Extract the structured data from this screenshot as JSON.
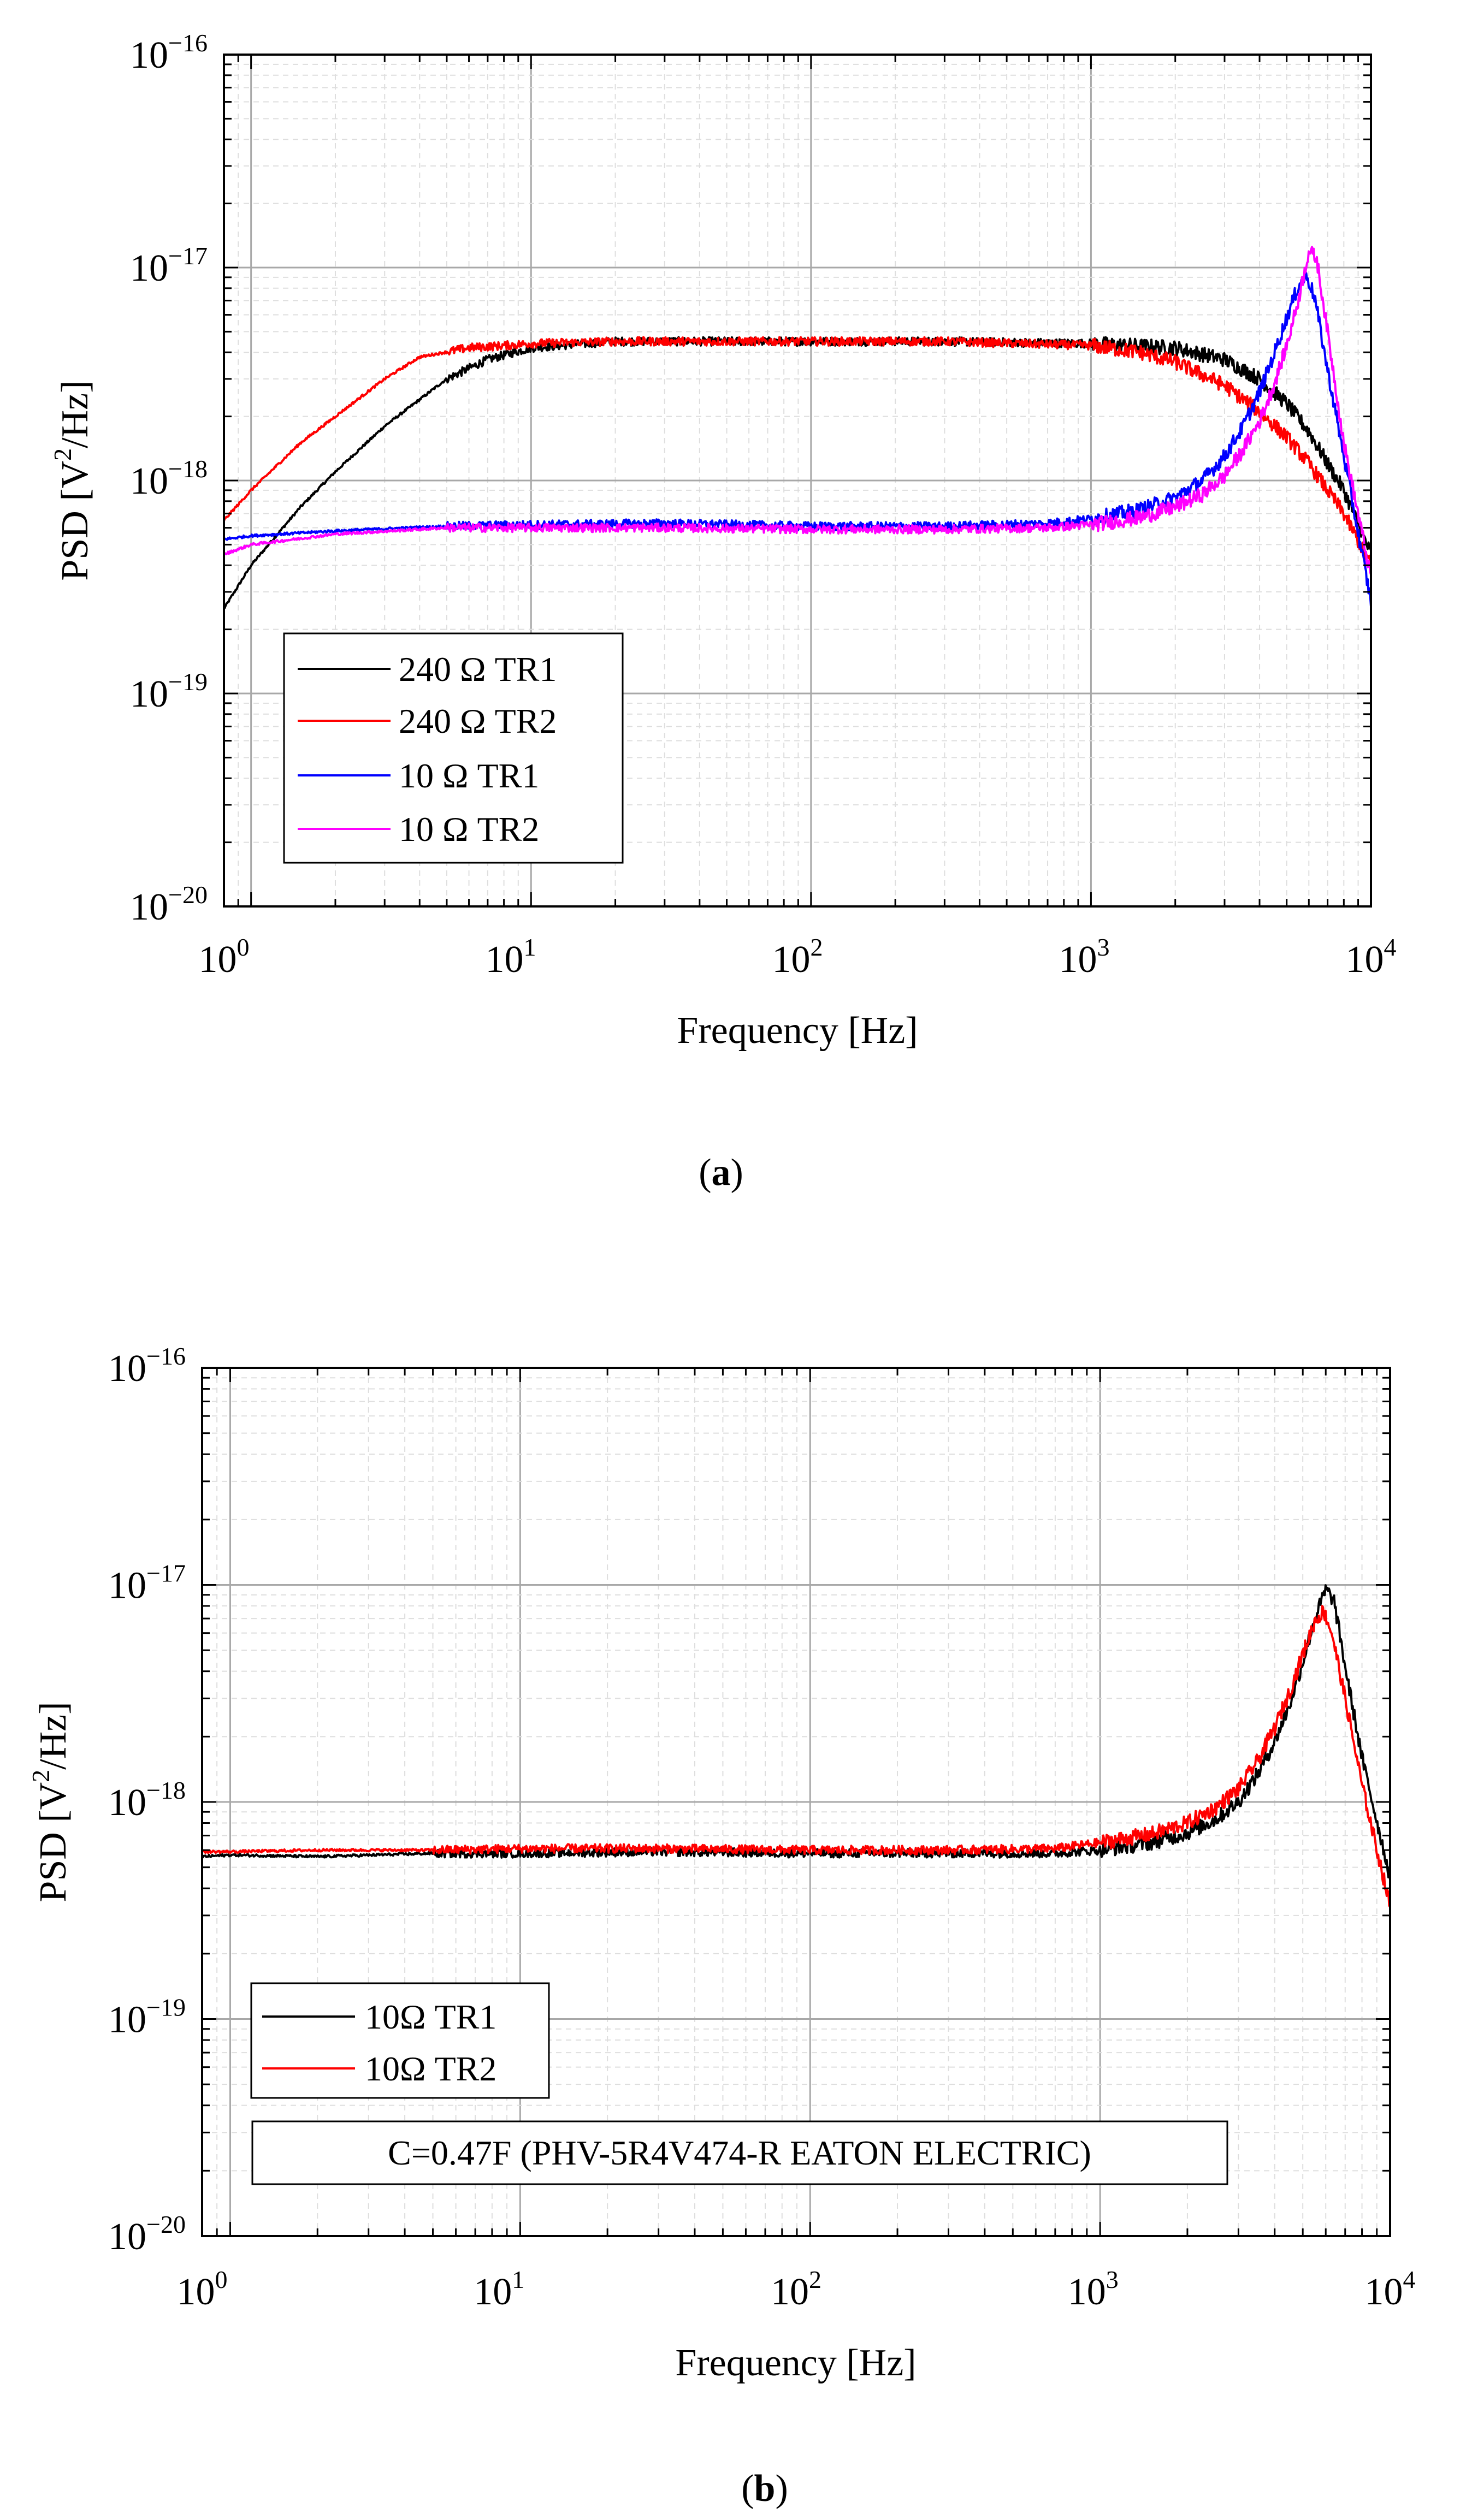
{
  "chart_data": [
    {
      "type": "line",
      "panel": "a",
      "caption": {
        "open": "(",
        "letter": "a",
        "close": ")"
      },
      "xlabel": "Frequency [Hz]",
      "ylabel": {
        "pre": "PSD [V",
        "sup": "2",
        "post": "/Hz]"
      },
      "xscale": "log",
      "yscale": "log",
      "xlim": [
        0.8,
        10000
      ],
      "ylim": [
        1e-20,
        1e-16
      ],
      "grid": true,
      "legend_position": "bottom-left",
      "x_ticks": [
        {
          "base": "10",
          "exp": "0"
        },
        {
          "base": "10",
          "exp": "1"
        },
        {
          "base": "10",
          "exp": "2"
        },
        {
          "base": "10",
          "exp": "3"
        },
        {
          "base": "10",
          "exp": "4"
        }
      ],
      "y_ticks": [
        {
          "base": "10",
          "exp": "−20"
        },
        {
          "base": "10",
          "exp": "−19"
        },
        {
          "base": "10",
          "exp": "−18"
        },
        {
          "base": "10",
          "exp": "−17"
        },
        {
          "base": "10",
          "exp": "−16"
        }
      ],
      "series": [
        {
          "name": "240 Ω TR1",
          "color": "#000000",
          "x": [
            0.8,
            1,
            1.5,
            2,
            3,
            4,
            5,
            7,
            10,
            20,
            50,
            100,
            300,
            1000,
            2000,
            3000,
            4000,
            5000,
            6000,
            7000,
            8000,
            10000
          ],
          "y": [
            2.5e-19,
            4e-19,
            7.5e-19,
            1.1e-18,
            1.8e-18,
            2.4e-18,
            3e-18,
            3.7e-18,
            4.2e-18,
            4.5e-18,
            4.5e-18,
            4.5e-18,
            4.5e-18,
            4.4e-18,
            4.2e-18,
            3.7e-18,
            3e-18,
            2.3e-18,
            1.7e-18,
            1.2e-18,
            9e-19,
            4.5e-19
          ]
        },
        {
          "name": "240 Ω TR2",
          "color": "#ff0000",
          "x": [
            0.8,
            1,
            1.5,
            2,
            3,
            4,
            6,
            8,
            10,
            20,
            50,
            100,
            300,
            1000,
            1500,
            2000,
            3000,
            4000,
            5000,
            6000,
            7000,
            8000,
            10000
          ],
          "y": [
            6.5e-19,
            9e-19,
            1.5e-18,
            2e-18,
            3e-18,
            3.8e-18,
            4.2e-18,
            4.3e-18,
            4.4e-18,
            4.5e-18,
            4.5e-18,
            4.5e-18,
            4.5e-18,
            4.3e-18,
            4e-18,
            3.6e-18,
            2.8e-18,
            2.1e-18,
            1.6e-18,
            1.2e-18,
            9e-19,
            7e-19,
            4e-19
          ]
        },
        {
          "name": "10 Ω TR1",
          "color": "#0000ff",
          "x": [
            0.8,
            1,
            2,
            5,
            10,
            30,
            100,
            300,
            700,
            1000,
            1500,
            2000,
            2500,
            3000,
            3500,
            4000,
            4500,
            5000,
            5500,
            5900,
            6300,
            7000,
            8000,
            10000
          ],
          "y": [
            5.3e-19,
            5.5e-19,
            5.8e-19,
            6.1e-19,
            6.2e-19,
            6.3e-19,
            6.1e-19,
            6.1e-19,
            6.3e-19,
            6.6e-19,
            7.3e-19,
            8.3e-19,
            1e-18,
            1.3e-18,
            1.8e-18,
            2.6e-18,
            3.9e-18,
            5.8e-18,
            8.2e-18,
            9.2e-18,
            7.2e-18,
            3.3e-18,
            1.3e-18,
            2.7e-19
          ]
        },
        {
          "name": "10 Ω TR2",
          "color": "#ff00ff",
          "x": [
            0.8,
            1,
            2,
            5,
            10,
            30,
            100,
            300,
            700,
            1000,
            1500,
            2000,
            2500,
            3000,
            3500,
            4000,
            4500,
            5000,
            5500,
            6000,
            6400,
            7000,
            8000,
            10000
          ],
          "y": [
            4.5e-19,
            5e-19,
            5.6e-19,
            6e-19,
            6e-19,
            6e-19,
            5.9e-19,
            5.9e-19,
            6e-19,
            6.2e-19,
            6.7e-19,
            7.5e-19,
            8.6e-19,
            1.05e-18,
            1.4e-18,
            1.9e-18,
            2.8e-18,
            4.3e-18,
            7e-18,
            1.2e-17,
            1.1e-17,
            5e-18,
            1.5e-18,
            3.5e-19
          ]
        }
      ]
    },
    {
      "type": "line",
      "panel": "b",
      "caption": {
        "open": "(",
        "letter": "b",
        "close": ")"
      },
      "xlabel": "Frequency [Hz]",
      "ylabel": {
        "pre": "PSD [V",
        "sup": "2",
        "post": "/Hz]"
      },
      "xscale": "log",
      "yscale": "log",
      "xlim": [
        0.8,
        10000
      ],
      "ylim": [
        1e-20,
        1e-16
      ],
      "grid": true,
      "legend_position": "bottom-left",
      "annotation": "C=0.47F (PHV-5R4V474-R EATON ELECTRIC)",
      "x_ticks": [
        {
          "base": "10",
          "exp": "0"
        },
        {
          "base": "10",
          "exp": "1"
        },
        {
          "base": "10",
          "exp": "2"
        },
        {
          "base": "10",
          "exp": "3"
        },
        {
          "base": "10",
          "exp": "4"
        }
      ],
      "y_ticks": [
        {
          "base": "10",
          "exp": "−20"
        },
        {
          "base": "10",
          "exp": "−19"
        },
        {
          "base": "10",
          "exp": "−18"
        },
        {
          "base": "10",
          "exp": "−17"
        },
        {
          "base": "10",
          "exp": "−16"
        }
      ],
      "series": [
        {
          "name": "10Ω TR1",
          "color": "#000000",
          "x": [
            0.8,
            1,
            2,
            5,
            10,
            30,
            100,
            300,
            700,
            1000,
            1500,
            2000,
            2500,
            3000,
            3500,
            4000,
            4500,
            5000,
            5500,
            6000,
            6400,
            7000,
            8000,
            10000
          ],
          "y": [
            5.6e-19,
            5.7e-19,
            5.6e-19,
            5.8e-19,
            5.8e-19,
            5.9e-19,
            5.8e-19,
            5.8e-19,
            5.8e-19,
            6e-19,
            6.5e-19,
            7.2e-19,
            8.3e-19,
            1e-18,
            1.35e-18,
            1.9e-18,
            2.8e-18,
            4.4e-18,
            7e-18,
            9.5e-18,
            8.5e-18,
            4.2e-18,
            1.6e-18,
            4.5e-19
          ]
        },
        {
          "name": "10Ω TR2",
          "color": "#ff0000",
          "x": [
            0.8,
            1,
            2,
            5,
            10,
            30,
            100,
            300,
            700,
            1000,
            1500,
            2000,
            2500,
            3000,
            3500,
            4000,
            4500,
            5000,
            5500,
            5900,
            6300,
            7000,
            8000,
            10000
          ],
          "y": [
            5.9e-19,
            5.9e-19,
            6e-19,
            6e-19,
            6.1e-19,
            6.1e-19,
            6e-19,
            6e-19,
            6.1e-19,
            6.5e-19,
            7.1e-19,
            8e-19,
            9.4e-19,
            1.15e-18,
            1.55e-18,
            2.2e-18,
            3.2e-18,
            4.8e-18,
            6.8e-18,
            7.6e-18,
            6e-18,
            3e-18,
            1.2e-18,
            3.3e-19
          ]
        }
      ]
    }
  ]
}
